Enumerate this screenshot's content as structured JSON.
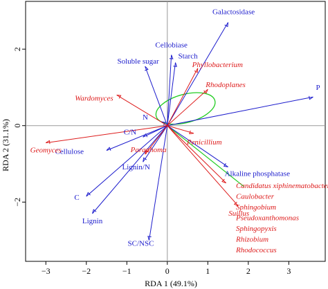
{
  "chart_data": {
    "type": "scatter",
    "subtype": "rda-biplot",
    "title": "",
    "xlabel": "RDA 1 (49.1%)",
    "ylabel": "RDA 2 (31.1%)",
    "xlim": [
      -3.5,
      3.9
    ],
    "ylim": [
      -3.55,
      3.25
    ],
    "xticks": [
      -3,
      -2,
      -1,
      0,
      1,
      2,
      3
    ],
    "yticks": [
      -2,
      0,
      2
    ],
    "xtick_labels": [
      "−3",
      "−2",
      "−1",
      "0",
      "1",
      "2",
      "3"
    ],
    "ytick_labels": [
      "−2",
      "0",
      "2"
    ],
    "zero_lines": true,
    "colors": {
      "environment": "#1a1acc",
      "taxa": "#dd1a1a",
      "ellipse": "#22cc22",
      "axis": "#999999"
    },
    "environment_arrows": [
      {
        "name": "Galactosidase",
        "x": 1.5,
        "y": 2.7
      },
      {
        "name": "Cellobiase",
        "x": 0.1,
        "y": 1.85
      },
      {
        "name": "Starch",
        "x": 0.2,
        "y": 1.65
      },
      {
        "name": "Soluble sugar",
        "x": -0.55,
        "y": 1.55
      },
      {
        "name": "P",
        "x": 3.6,
        "y": 0.75
      },
      {
        "name": "N",
        "x": -0.15,
        "y": 0.1
      },
      {
        "name": "C/N",
        "x": -0.6,
        "y": -0.3
      },
      {
        "name": "Cellulose",
        "x": -1.5,
        "y": -0.65
      },
      {
        "name": "Lignin/N",
        "x": -0.6,
        "y": -0.95
      },
      {
        "name": "Alkaline phosphatase",
        "x": 1.5,
        "y": -1.08
      },
      {
        "name": "C",
        "x": -2.0,
        "y": -1.85
      },
      {
        "name": "Lignin",
        "x": -1.85,
        "y": -2.3
      },
      {
        "name": "SC/NSC",
        "x": -0.45,
        "y": -3.0
      }
    ],
    "taxa_arrows": [
      {
        "name": "Phyllobacterium",
        "x": 0.75,
        "y": 1.5
      },
      {
        "name": "Rhodoplanes",
        "x": 1.0,
        "y": 0.95
      },
      {
        "name": "Wardomyces",
        "x": -1.25,
        "y": 0.8
      },
      {
        "name": "Penicillium",
        "x": 0.65,
        "y": -0.2
      },
      {
        "name": "Geomyces",
        "x": -3.0,
        "y": -0.45
      },
      {
        "name": "Paraphoma",
        "x": -0.55,
        "y": -0.75
      },
      {
        "name": "Suillus",
        "x": 1.75,
        "y": -2.1
      },
      {
        "name": "Candidatus xiphinematobacter",
        "x": 1.45,
        "y": -1.5
      }
    ],
    "green_line": {
      "x": [
        0,
        1.9
      ],
      "y": [
        0,
        -1.6
      ]
    },
    "taxa_group_labels": [
      "Candidatus xiphinematobacter",
      "Caulobacter",
      "Sphingobium",
      "Pseudoxanthomonas",
      "Sphingopyxis",
      "Rhizobium",
      "Rhodococcus"
    ],
    "ellipse": {
      "cx": 0.45,
      "cy": 0.45,
      "rx": 0.75,
      "ry": 0.37,
      "rotation_deg": -15
    }
  }
}
